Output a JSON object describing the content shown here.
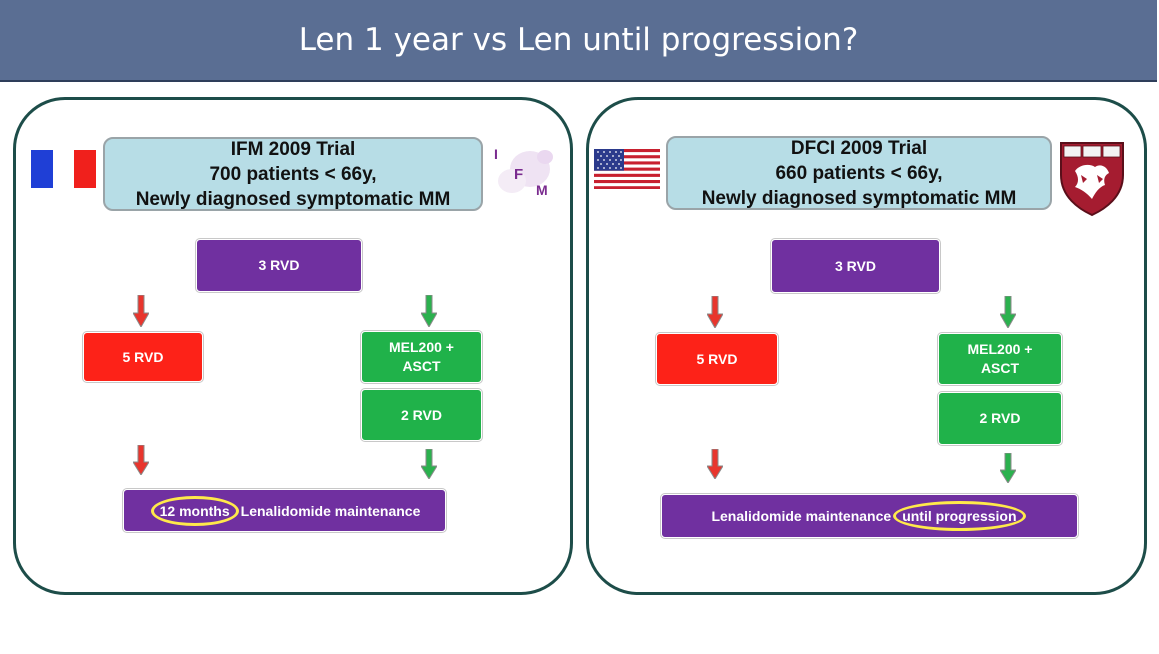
{
  "title": "Len 1 year vs Len until progression?",
  "colors": {
    "title_bar": "#5a6e93",
    "panel_border": "#1d4d49",
    "trial_box": "#b7dde6",
    "purple": "#7030a0",
    "red": "#fd2218",
    "green": "#20b24a",
    "highlight": "#ffe94a"
  },
  "left": {
    "flag_icon": "france-flag-icon",
    "logo_icon": "ifm-logo-icon",
    "logo_letters": [
      "I",
      "F",
      "M"
    ],
    "trial": {
      "line1": "IFM 2009 Trial",
      "line2": "700 patients < 66y,",
      "line3": "Newly diagnosed symptomatic MM"
    },
    "induction": "3 RVD",
    "arm_a": "5 RVD",
    "arm_b_1": "MEL200 +",
    "arm_b_2": "ASCT",
    "consolidation": "2 RVD",
    "maintenance_highlight": "12 months",
    "maintenance": "Lenalidomide maintenance"
  },
  "right": {
    "flag_icon": "usa-flag-icon",
    "logo_icon": "harvard-shield-icon",
    "trial": {
      "line1": "DFCI 2009 Trial",
      "line2": "660 patients < 66y,",
      "line3": "Newly diagnosed symptomatic MM"
    },
    "induction": "3 RVD",
    "arm_a": "5 RVD",
    "arm_b_1": "MEL200 +",
    "arm_b_2": "ASCT",
    "consolidation": "2 RVD",
    "maintenance": "Lenalidomide maintenance",
    "maintenance_highlight": "until progression"
  }
}
